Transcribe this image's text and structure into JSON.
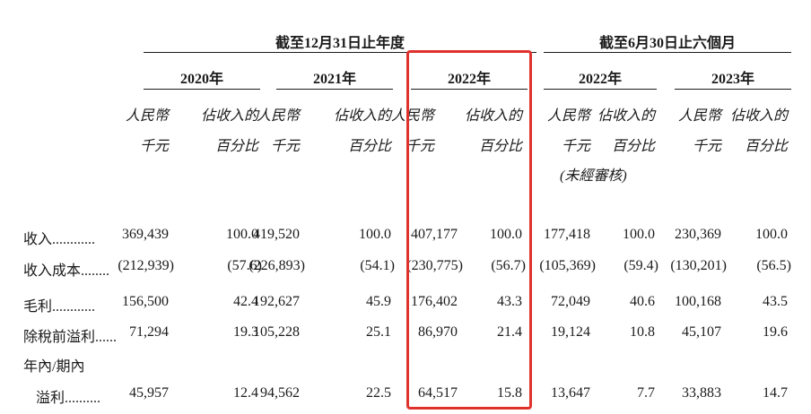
{
  "header": {
    "group_fy": "截至12月31日止年度",
    "group_half": "截至6月30日止六個月",
    "years": [
      "2020年",
      "2021年",
      "2022年",
      "2022年",
      "2023年"
    ],
    "sub_line1": [
      "人民幣",
      "佔收入的",
      "人民幣",
      "佔收入的",
      "人民幣",
      "佔收入的",
      "人民幣",
      "佔收入的",
      "人民幣",
      "佔收入的"
    ],
    "sub_line2": [
      "千元",
      "百分比",
      "千元",
      "百分比",
      "千元",
      "百分比",
      "千元",
      "百分比",
      "千元",
      "百分比"
    ],
    "unaudited": "(未經審核)"
  },
  "rows": [
    {
      "label": "收入............",
      "values": [
        "369,439",
        "100.0",
        "419,520",
        "100.0",
        "407,177",
        "100.0",
        "177,418",
        "100.0",
        "230,369",
        "100.0"
      ]
    },
    {
      "label": "收入成本........",
      "values": [
        "(212,939)",
        "(57.6)",
        "(226,893)",
        "(54.1)",
        "(230,775)",
        "(56.7)",
        "(105,369)",
        "(59.4)",
        "(130,201)",
        "(56.5)"
      ]
    },
    {
      "label": "毛利............",
      "values": [
        "156,500",
        "42.4",
        "192,627",
        "45.9",
        "176,402",
        "43.3",
        "72,049",
        "40.6",
        "100,168",
        "43.5"
      ]
    },
    {
      "label": "除稅前溢利......",
      "values": [
        "71,294",
        "19.3",
        "105,228",
        "25.1",
        "86,970",
        "21.4",
        "19,124",
        "10.8",
        "45,107",
        "19.6"
      ]
    },
    {
      "label": "年內/期內",
      "values": []
    },
    {
      "label": "溢利..........",
      "values": [
        "45,957",
        "12.4",
        "94,562",
        "22.5",
        "64,517",
        "15.8",
        "13,647",
        "7.7",
        "33,883",
        "14.7"
      ]
    }
  ],
  "colors": {
    "highlight": "#e0322d",
    "text": "#1a1a1a"
  }
}
